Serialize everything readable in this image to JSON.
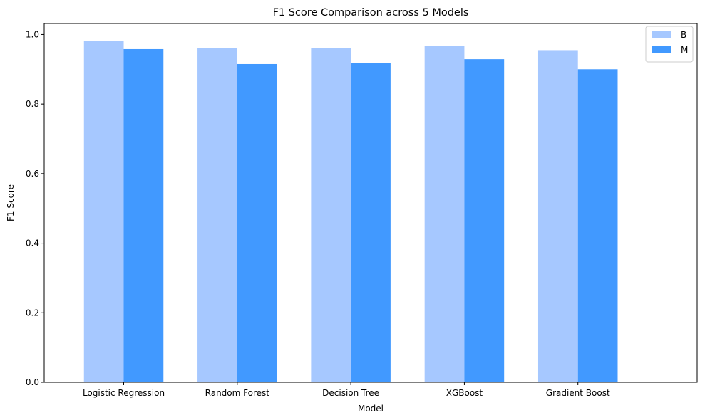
{
  "chart_data": {
    "type": "bar",
    "title": "F1 Score Comparison across 5 Models",
    "xlabel": "Model",
    "ylabel": "F1 Score",
    "categories": [
      "Logistic Regression",
      "Random Forest",
      "Decision Tree",
      "XGBoost",
      "Gradient Boost"
    ],
    "series": [
      {
        "name": "B",
        "color": "#a6c8ff",
        "values": [
          0.982,
          0.962,
          0.962,
          0.968,
          0.955
        ]
      },
      {
        "name": "M",
        "color": "#4199ff",
        "values": [
          0.958,
          0.915,
          0.917,
          0.929,
          0.9
        ]
      }
    ],
    "ylim": [
      0,
      1.0316
    ],
    "yticks": [
      "0.0",
      "0.2",
      "0.4",
      "0.6",
      "0.8",
      "1.0"
    ],
    "ytick_values": [
      0,
      0.2,
      0.4,
      0.6,
      0.8,
      1.0
    ],
    "grid": false,
    "legend": "top-right"
  }
}
